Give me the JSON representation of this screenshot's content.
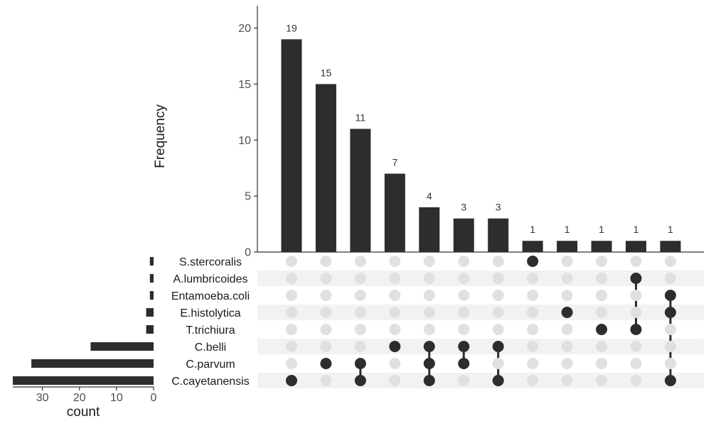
{
  "chart_data": {
    "type": "upset",
    "ylabel": "Frequency",
    "ylim": [
      0,
      22
    ],
    "yticks": [
      0,
      5,
      10,
      15,
      20
    ],
    "sets": [
      "S.stercoralis",
      "A.lumbricoides",
      "Entamoeba.coli",
      "E.histolytica",
      "T.trichiura",
      "C.belli",
      "C.parvum",
      "C.cayetanensis"
    ],
    "set_sizes": [
      1,
      1,
      1,
      2,
      2,
      17,
      33,
      38
    ],
    "set_size_xlabel": "count",
    "set_size_xticks": [
      30,
      20,
      10,
      0
    ],
    "set_size_xlim": [
      0,
      38
    ],
    "intersections": [
      {
        "sets": [
          "C.cayetanensis"
        ],
        "value": 19
      },
      {
        "sets": [
          "C.parvum"
        ],
        "value": 15
      },
      {
        "sets": [
          "C.parvum",
          "C.cayetanensis"
        ],
        "value": 11
      },
      {
        "sets": [
          "C.belli"
        ],
        "value": 7
      },
      {
        "sets": [
          "C.belli",
          "C.parvum",
          "C.cayetanensis"
        ],
        "value": 4
      },
      {
        "sets": [
          "C.belli",
          "C.parvum"
        ],
        "value": 3
      },
      {
        "sets": [
          "C.belli",
          "C.cayetanensis"
        ],
        "value": 3
      },
      {
        "sets": [
          "S.stercoralis"
        ],
        "value": 1
      },
      {
        "sets": [
          "E.histolytica"
        ],
        "value": 1
      },
      {
        "sets": [
          "T.trichiura"
        ],
        "value": 1
      },
      {
        "sets": [
          "A.lumbricoides",
          "T.trichiura"
        ],
        "value": 1
      },
      {
        "sets": [
          "Entamoeba.coli",
          "E.histolytica",
          "C.cayetanensis"
        ],
        "value": 1
      }
    ],
    "colors": {
      "bar": "#2d2d2d",
      "dot_active": "#2d2d2d",
      "dot_inactive": "#e0e0e0",
      "stripe": "#f2f2f2",
      "axis": "#333333"
    }
  }
}
